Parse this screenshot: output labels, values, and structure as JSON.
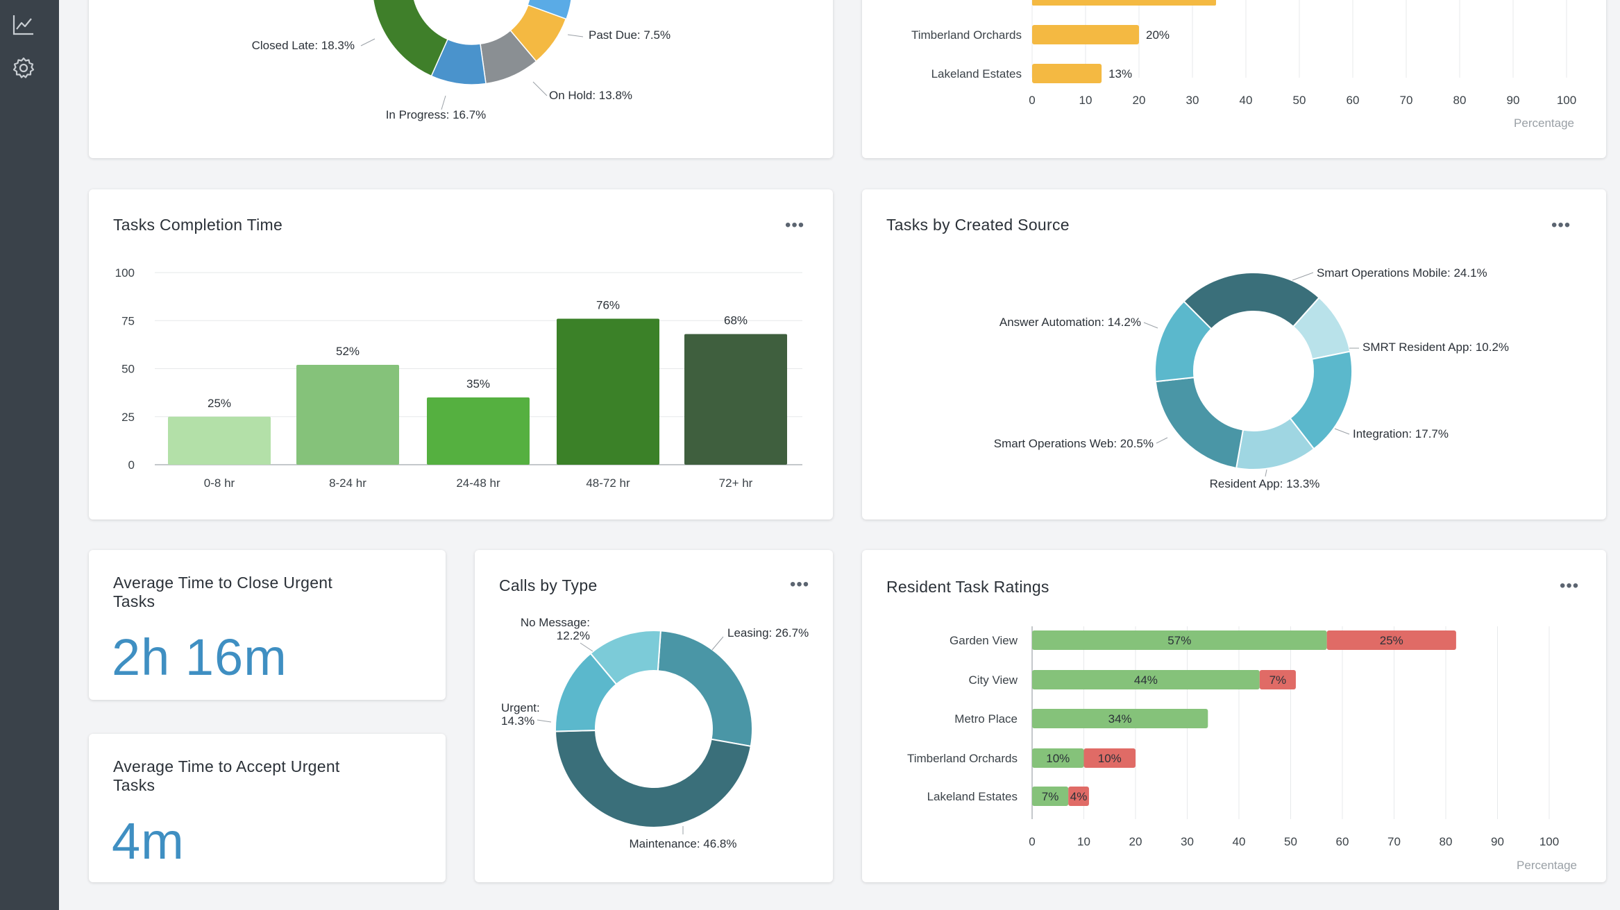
{
  "sidebar": {
    "items": [
      {
        "icon": "line-chart-icon"
      },
      {
        "icon": "gear-icon"
      }
    ]
  },
  "task_status": {
    "slices": [
      {
        "label": "Past Due: 7.5%",
        "color": "#f4b942"
      },
      {
        "label": "On Hold: 13.8%",
        "color": "#8a8f93"
      },
      {
        "label": "In Progress: 16.7%",
        "color": "#4a93cc"
      },
      {
        "label": "Closed Late: 18.3%",
        "color": "#3f7f2a"
      }
    ]
  },
  "top_bars": {
    "axis_title": "Percentage",
    "categories": [
      "Timberland Orchards",
      "Lakeland Estates"
    ],
    "values": [
      20,
      13
    ],
    "value_labels": [
      "20%",
      "13%"
    ],
    "ticks": [
      "0",
      "10",
      "20",
      "30",
      "40",
      "50",
      "60",
      "70",
      "80",
      "90",
      "100"
    ],
    "color": "#f4b942"
  },
  "completion": {
    "title": "Tasks Completion Time",
    "menu": "•••",
    "chart_data": {
      "type": "bar",
      "categories": [
        "0-8 hr",
        "8-24 hr",
        "24-48 hr",
        "48-72 hr",
        "72+ hr"
      ],
      "values": [
        25,
        52,
        35,
        76,
        68
      ],
      "value_labels": [
        "25%",
        "52%",
        "35%",
        "76%",
        "68%"
      ],
      "yticks": [
        "0",
        "25",
        "50",
        "75",
        "100"
      ],
      "ylim": [
        0,
        100
      ],
      "colors": [
        "#b3e0a8",
        "#85c27a",
        "#55b040",
        "#3b8128",
        "#3f5f3e"
      ]
    }
  },
  "created_source": {
    "title": "Tasks by Created Source",
    "menu": "•••",
    "chart_data": {
      "type": "pie",
      "labels": [
        "Smart Operations Mobile: 24.1%",
        "SMRT Resident App: 10.2%",
        "Integration: 17.7%",
        "Resident App: 13.3%",
        "Smart Operations Web: 20.5%",
        "Answer Automation: 14.2%"
      ],
      "values": [
        24.1,
        10.2,
        17.7,
        13.3,
        20.5,
        14.2
      ],
      "colors": [
        "#3a6f7a",
        "#b9e2ea",
        "#5bb8cc",
        "#9fd6e2",
        "#4a96a6",
        "#5bb8cc"
      ]
    }
  },
  "close_urgent": {
    "title": "Average Time to Close Urgent Tasks",
    "value": "2h 16m"
  },
  "accept_urgent": {
    "title": "Average Time to Accept Urgent Tasks",
    "value": "4m"
  },
  "calls": {
    "title": "Calls by Type",
    "menu": "•••",
    "chart_data": {
      "type": "pie",
      "labels": [
        "Leasing: 26.7%",
        "Maintenance: 46.8%",
        "Urgent: 14.3%",
        "No Message: 12.2%"
      ],
      "values": [
        26.7,
        46.8,
        14.3,
        12.2
      ],
      "colors": [
        "#4a96a6",
        "#3a6f7a",
        "#5bb8cc",
        "#7ccbd8"
      ]
    }
  },
  "ratings": {
    "title": "Resident Task Ratings",
    "menu": "•••",
    "chart_data": {
      "type": "bar",
      "categories": [
        "Garden View",
        "City View",
        "Metro Place",
        "Timberland Orchards",
        "Lakeland Estates"
      ],
      "series": [
        {
          "values": [
            57,
            44,
            34,
            10,
            7
          ],
          "labels": [
            "57%",
            "44%",
            "34%",
            "10%",
            "7%"
          ],
          "color": "#85c27a"
        },
        {
          "values": [
            25,
            7,
            0,
            10,
            4
          ],
          "labels": [
            "25%",
            "7%",
            "",
            "10%",
            "4%"
          ],
          "color": "#e06b66"
        }
      ],
      "xticks": [
        "0",
        "10",
        "20",
        "30",
        "40",
        "50",
        "60",
        "70",
        "80",
        "90",
        "100"
      ],
      "xlabel": "Percentage",
      "xlim": [
        0,
        100
      ]
    }
  }
}
